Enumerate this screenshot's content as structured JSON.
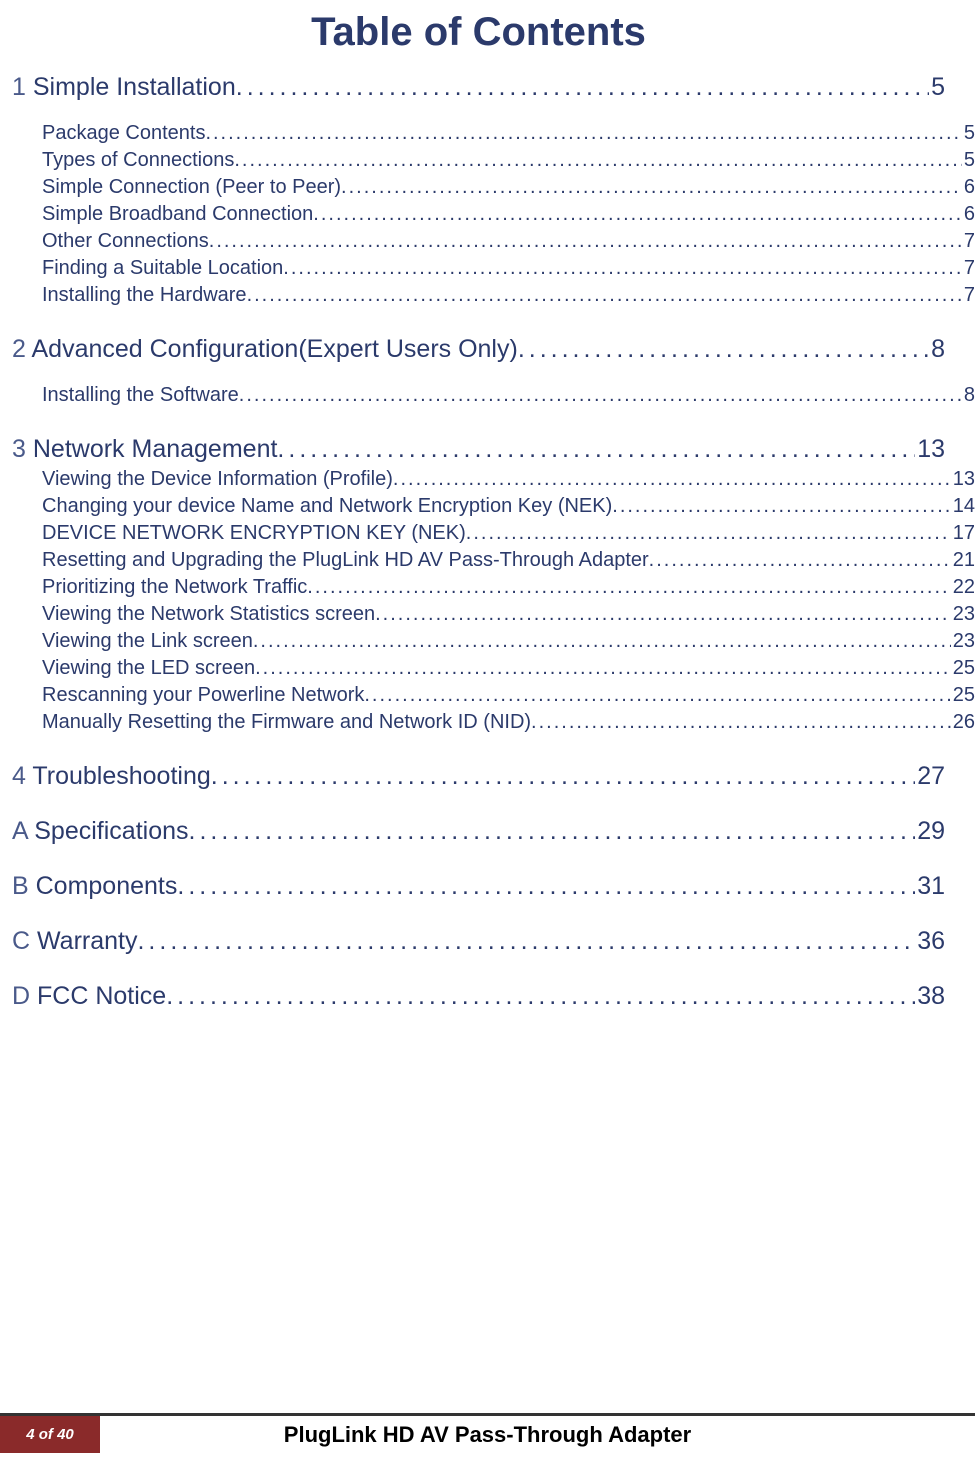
{
  "title": "Table of Contents",
  "colors": {
    "text": "#2b3a6b",
    "footer_bar": "#333333",
    "footer_badge_bg": "#8a2a2a",
    "footer_badge_text": "#ffffff",
    "footer_title": "#000000",
    "background": "#ffffff"
  },
  "footer": {
    "page_label": "4 of 40",
    "doc_title": "PlugLink HD AV Pass-Through Adapter"
  },
  "toc": [
    {
      "level": "chapter",
      "num": "1",
      "title": "Simple Installation",
      "page": "5",
      "class": "first"
    },
    {
      "level": "sub",
      "title": "Package Contents",
      "page": "5"
    },
    {
      "level": "sub",
      "title": "Types of Connections",
      "page": "5"
    },
    {
      "level": "sub",
      "title": "Simple Connection (Peer to Peer)",
      "page": "6"
    },
    {
      "level": "sub",
      "title": "Simple Broadband Connection",
      "page": "6"
    },
    {
      "level": "sub",
      "title": "Other Connections",
      "page": "7"
    },
    {
      "level": "sub",
      "title": "Finding a Suitable Location",
      "page": "7"
    },
    {
      "level": "sub",
      "title": "Installing the Hardware",
      "page": "7"
    },
    {
      "level": "chapter",
      "num": "2",
      "title": "Advanced Configuration(Expert Users Only)",
      "page": "8"
    },
    {
      "level": "sub",
      "title": "Installing the Software",
      "page": "8"
    },
    {
      "level": "chapter",
      "num": "3",
      "title": "Network Management",
      "page": "13",
      "class": "tight-after"
    },
    {
      "level": "sub",
      "title": "Viewing the Device Information (Profile)",
      "page": "13"
    },
    {
      "level": "sub",
      "title": "Changing your device Name and Network Encryption Key (NEK)",
      "page": "14"
    },
    {
      "level": "sub",
      "title": "DEVICE NETWORK ENCRYPTION KEY (NEK)",
      "page": "17"
    },
    {
      "level": "sub",
      "title": "Resetting and Upgrading the PlugLink HD AV Pass-Through Adapter",
      "page": "21"
    },
    {
      "level": "sub",
      "title": "Prioritizing the Network Traffic",
      "page": "22"
    },
    {
      "level": "sub",
      "title": "Viewing the Network Statistics screen",
      "page": "23"
    },
    {
      "level": "sub",
      "title": "Viewing the Link screen",
      "page": "23"
    },
    {
      "level": "sub",
      "title": "Viewing the LED screen",
      "page": "25"
    },
    {
      "level": "sub",
      "title": "Rescanning your Powerline Network",
      "page": "25"
    },
    {
      "level": "sub",
      "title": "Manually Resetting the Firmware and Network ID (NID)",
      "page": "26"
    },
    {
      "level": "chapter",
      "num": "4",
      "title": "Troubleshooting",
      "page": "27"
    },
    {
      "level": "chapter",
      "num": "A",
      "title": "Specifications",
      "page": "29"
    },
    {
      "level": "chapter",
      "num": "B",
      "title": "Components",
      "page": "31"
    },
    {
      "level": "chapter",
      "num": "C",
      "title": "Warranty",
      "page": "36"
    },
    {
      "level": "chapter",
      "num": "D",
      "title": "FCC Notice",
      "page": "38"
    }
  ]
}
